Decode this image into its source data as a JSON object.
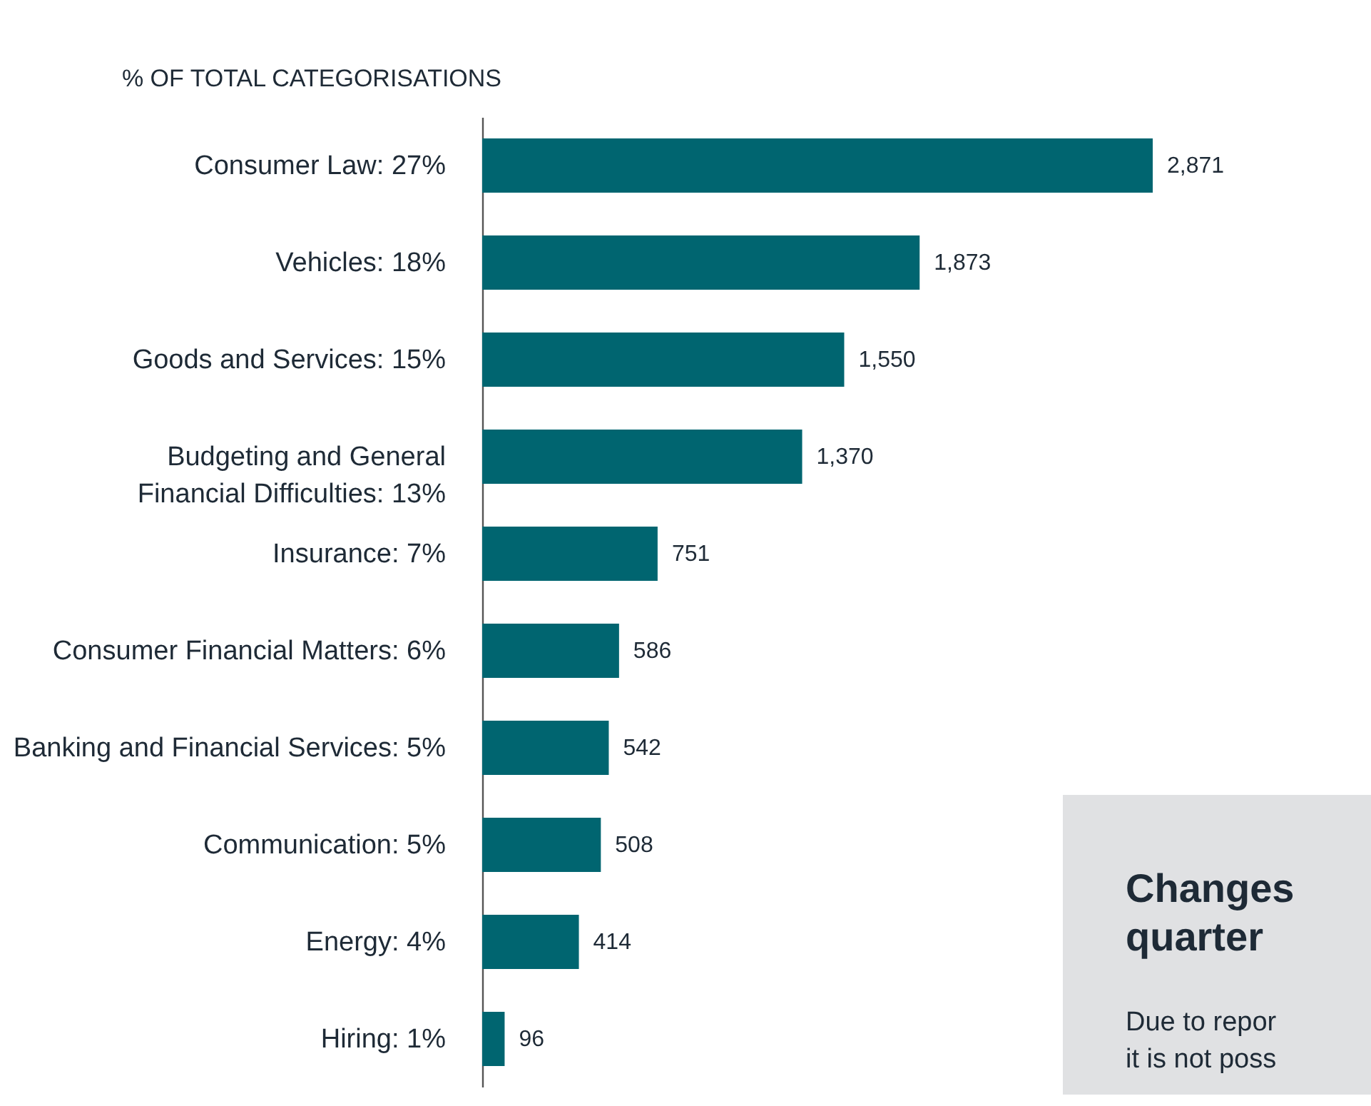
{
  "chart_data": {
    "type": "bar",
    "orientation": "horizontal",
    "title": "% OF TOTAL CATEGORISATIONS",
    "categories": [
      "Consumer Law: 27%",
      "Vehicles: 18%",
      "Goods and Services: 15%",
      "Budgeting and General\nFinancial Difficulties: 13%",
      "Insurance: 7%",
      "Consumer Financial Matters: 6%",
      "Banking and Financial Services: 5%",
      "Communication: 5%",
      "Energy: 4%",
      "Hiring: 1%"
    ],
    "values": [
      2871,
      1873,
      1550,
      1370,
      751,
      586,
      542,
      508,
      414,
      96
    ],
    "color": "#006570",
    "value_labels": [
      "2,871",
      "1,873",
      "1,550",
      "1,370",
      "751",
      "586",
      "542",
      "508",
      "414",
      "96"
    ],
    "annotations": [
      "Changes",
      "quarter",
      "Due to repor",
      "it is not poss"
    ]
  }
}
